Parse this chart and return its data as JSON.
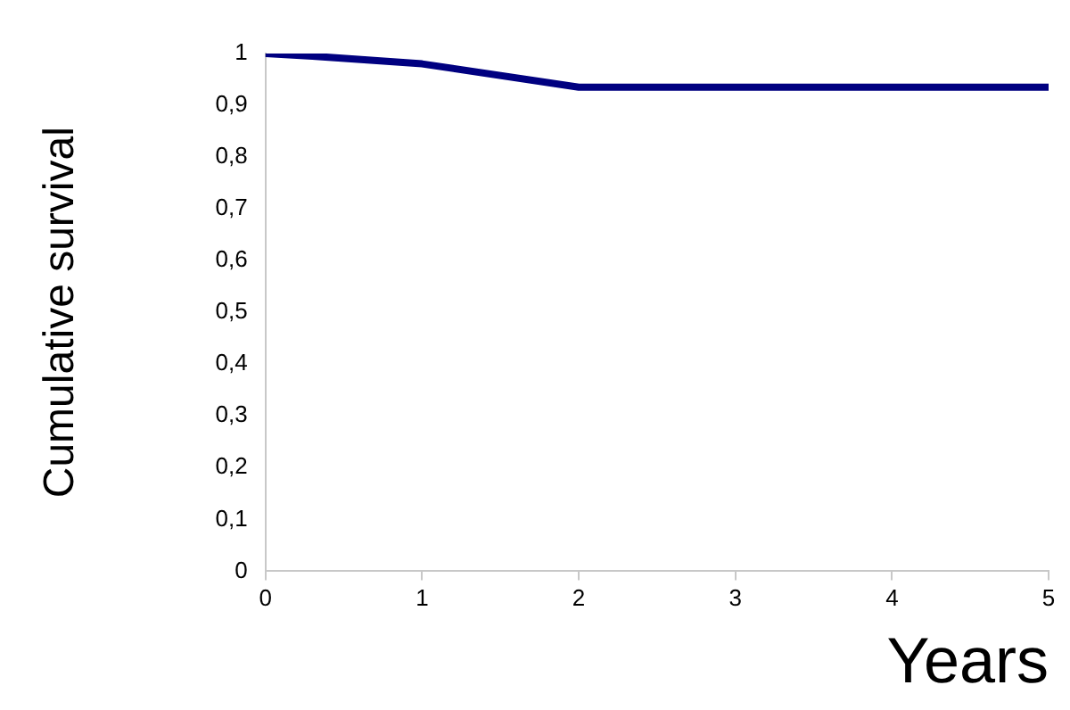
{
  "chart_data": {
    "type": "line",
    "xlabel": "Years",
    "ylabel": "Cumulative survival",
    "x": [
      0,
      0.3,
      1,
      2,
      5
    ],
    "series": [
      {
        "color": "#000080",
        "values": [
          1,
          0.995,
          0.98,
          0.935,
          0.935
        ]
      }
    ],
    "xlim": [
      0,
      5
    ],
    "xticks": [
      0,
      1,
      2,
      3,
      4,
      5
    ],
    "ylim": [
      0,
      1
    ],
    "yticks": [
      {
        "value": 0,
        "label": "0"
      },
      {
        "value": 0.1,
        "label": "0,1"
      },
      {
        "value": 0.2,
        "label": "0,2"
      },
      {
        "value": 0.3,
        "label": "0,3"
      },
      {
        "value": 0.4,
        "label": "0,4"
      },
      {
        "value": 0.5,
        "label": "0,5"
      },
      {
        "value": 0.6,
        "label": "0,6"
      },
      {
        "value": 0.7,
        "label": "0,7"
      },
      {
        "value": 0.8,
        "label": "0,8"
      },
      {
        "value": 0.9,
        "label": "0,9"
      },
      {
        "value": 1,
        "label": "1"
      }
    ],
    "grid": false,
    "legend": false,
    "marker": "none",
    "line_style": "solid"
  }
}
